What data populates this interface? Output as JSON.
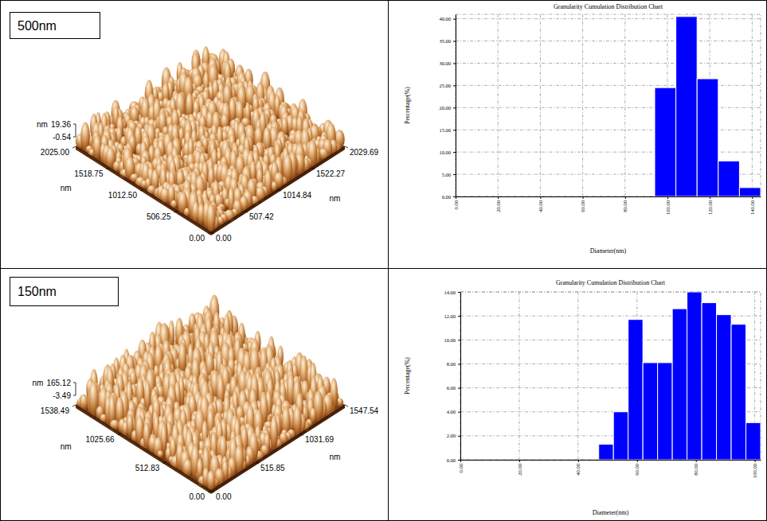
{
  "chart_data": [
    {
      "type": "surface",
      "title": "500nm",
      "xlabel": "nm",
      "ylabel": "nm",
      "zlabel": "nm",
      "xlim": [
        0,
        2029.69
      ],
      "xticks": [
        {
          "value": 0,
          "label": "0.00"
        },
        507.42,
        1014.84,
        1522.27,
        2029.69
      ],
      "ylim": [
        0,
        2025
      ],
      "yticks": [
        {
          "value": 0,
          "label": "0.00"
        },
        506.25,
        {
          "value": 1012.5,
          "label": "1012.50"
        },
        1518.75,
        {
          "value": 2025,
          "label": "2025.00"
        }
      ],
      "zlim": [
        -0.54,
        19.36
      ],
      "zticks": [
        -0.54,
        19.36
      ]
    },
    {
      "type": "histogram",
      "title": "Granularity Cumulation Distribution Chart",
      "xlabel": "Diameter(nm)",
      "ylabel": "Percentage(%)",
      "bins": [
        94,
        104,
        114,
        124,
        134,
        144
      ],
      "values": [
        24.5,
        40.5,
        26.5,
        8,
        2
      ],
      "color": "#0000ff",
      "xlim": [
        0,
        144
      ],
      "xticks": [
        {
          "value": 0,
          "label": "0.00"
        },
        {
          "value": 20,
          "label": "20.00"
        },
        {
          "value": 40,
          "label": "40.00"
        },
        {
          "value": 60,
          "label": "60.00"
        },
        {
          "value": 80,
          "label": "80.00"
        },
        {
          "value": 100,
          "label": "100.00"
        },
        {
          "value": 120,
          "label": "120.00"
        },
        {
          "value": 140,
          "label": "140.00"
        }
      ],
      "ylim": [
        0,
        41
      ],
      "yticks": [
        {
          "value": 0,
          "label": "0.00"
        },
        {
          "value": 5,
          "label": "5.00"
        },
        {
          "value": 10,
          "label": "10.00"
        },
        {
          "value": 15,
          "label": "15.00"
        },
        {
          "value": 20,
          "label": "20.00"
        },
        {
          "value": 25,
          "label": "25.00"
        },
        {
          "value": 30,
          "label": "30.00"
        },
        {
          "value": 35,
          "label": "35.00"
        },
        {
          "value": 40,
          "label": "40.00"
        }
      ],
      "grid": true
    },
    {
      "type": "surface",
      "title": "150nm",
      "xlabel": "nm",
      "ylabel": "nm",
      "zlabel": "nm",
      "xlim": [
        0,
        1547.54
      ],
      "xticks": [
        {
          "value": 0,
          "label": "0.00"
        },
        515.85,
        1031.69,
        1547.54
      ],
      "ylim": [
        0,
        1538.49
      ],
      "yticks": [
        {
          "value": 0,
          "label": "0.00"
        },
        512.83,
        1025.66,
        1538.49
      ],
      "zlim": [
        -3.49,
        165.12
      ],
      "zticks": [
        -3.49,
        165.12
      ]
    },
    {
      "type": "histogram",
      "title": "Granularity Cumulation Distribution Chart",
      "xlabel": "Diameter(nm)",
      "ylabel": "Percentage(%)",
      "bins": [
        47,
        52,
        57,
        62,
        67,
        72,
        77,
        82,
        87,
        92,
        97,
        102
      ],
      "values": [
        1.3,
        4,
        11.7,
        8.1,
        8.1,
        12.6,
        14,
        13.1,
        12.1,
        11.3,
        3.1
      ],
      "color": "#0000ff",
      "xlim": [
        0,
        102
      ],
      "xticks": [
        {
          "value": 0,
          "label": "0.00"
        },
        {
          "value": 20,
          "label": "20.00"
        },
        {
          "value": 40,
          "label": "40.00"
        },
        {
          "value": 60,
          "label": "60.00"
        },
        {
          "value": 80,
          "label": "80.00"
        },
        {
          "value": 100,
          "label": "100.00"
        }
      ],
      "ylim": [
        0,
        14
      ],
      "yticks": [
        {
          "value": 0,
          "label": "0.00"
        },
        {
          "value": 2,
          "label": "2.00"
        },
        {
          "value": 4,
          "label": "4.00"
        },
        {
          "value": 6,
          "label": "6.00"
        },
        {
          "value": 8,
          "label": "8.00"
        },
        {
          "value": 10,
          "label": "10.00"
        },
        {
          "value": 12,
          "label": "12.00"
        },
        {
          "value": 14,
          "label": "14.00"
        }
      ],
      "grid": true
    }
  ]
}
